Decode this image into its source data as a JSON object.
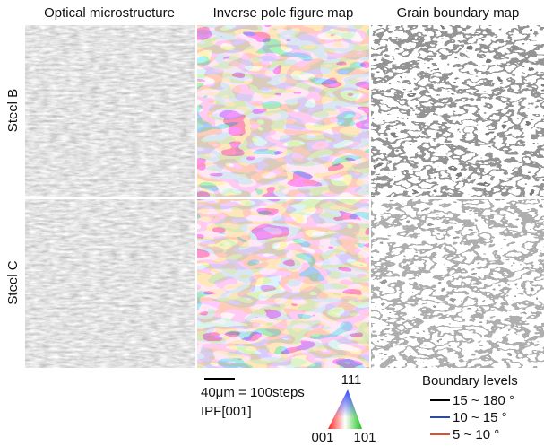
{
  "columns": [
    "Optical microstructure",
    "Inverse pole figure map",
    "Grain boundary map"
  ],
  "rows": [
    "Steel B",
    "Steel C"
  ],
  "scale_bar": "40μm = 100steps",
  "ipf_label": "IPF[001]",
  "triangle": {
    "top": "111",
    "left": "001",
    "right": "101"
  },
  "legend": {
    "title": "Boundary levels",
    "entries": [
      {
        "name": "15 ~ 180 °",
        "color": "#000000"
      },
      {
        "name": "10 ~ 15 °",
        "color": "#2e4a9e"
      },
      {
        "name": "5 ~ 10 °",
        "color": "#e0502a"
      }
    ]
  }
}
